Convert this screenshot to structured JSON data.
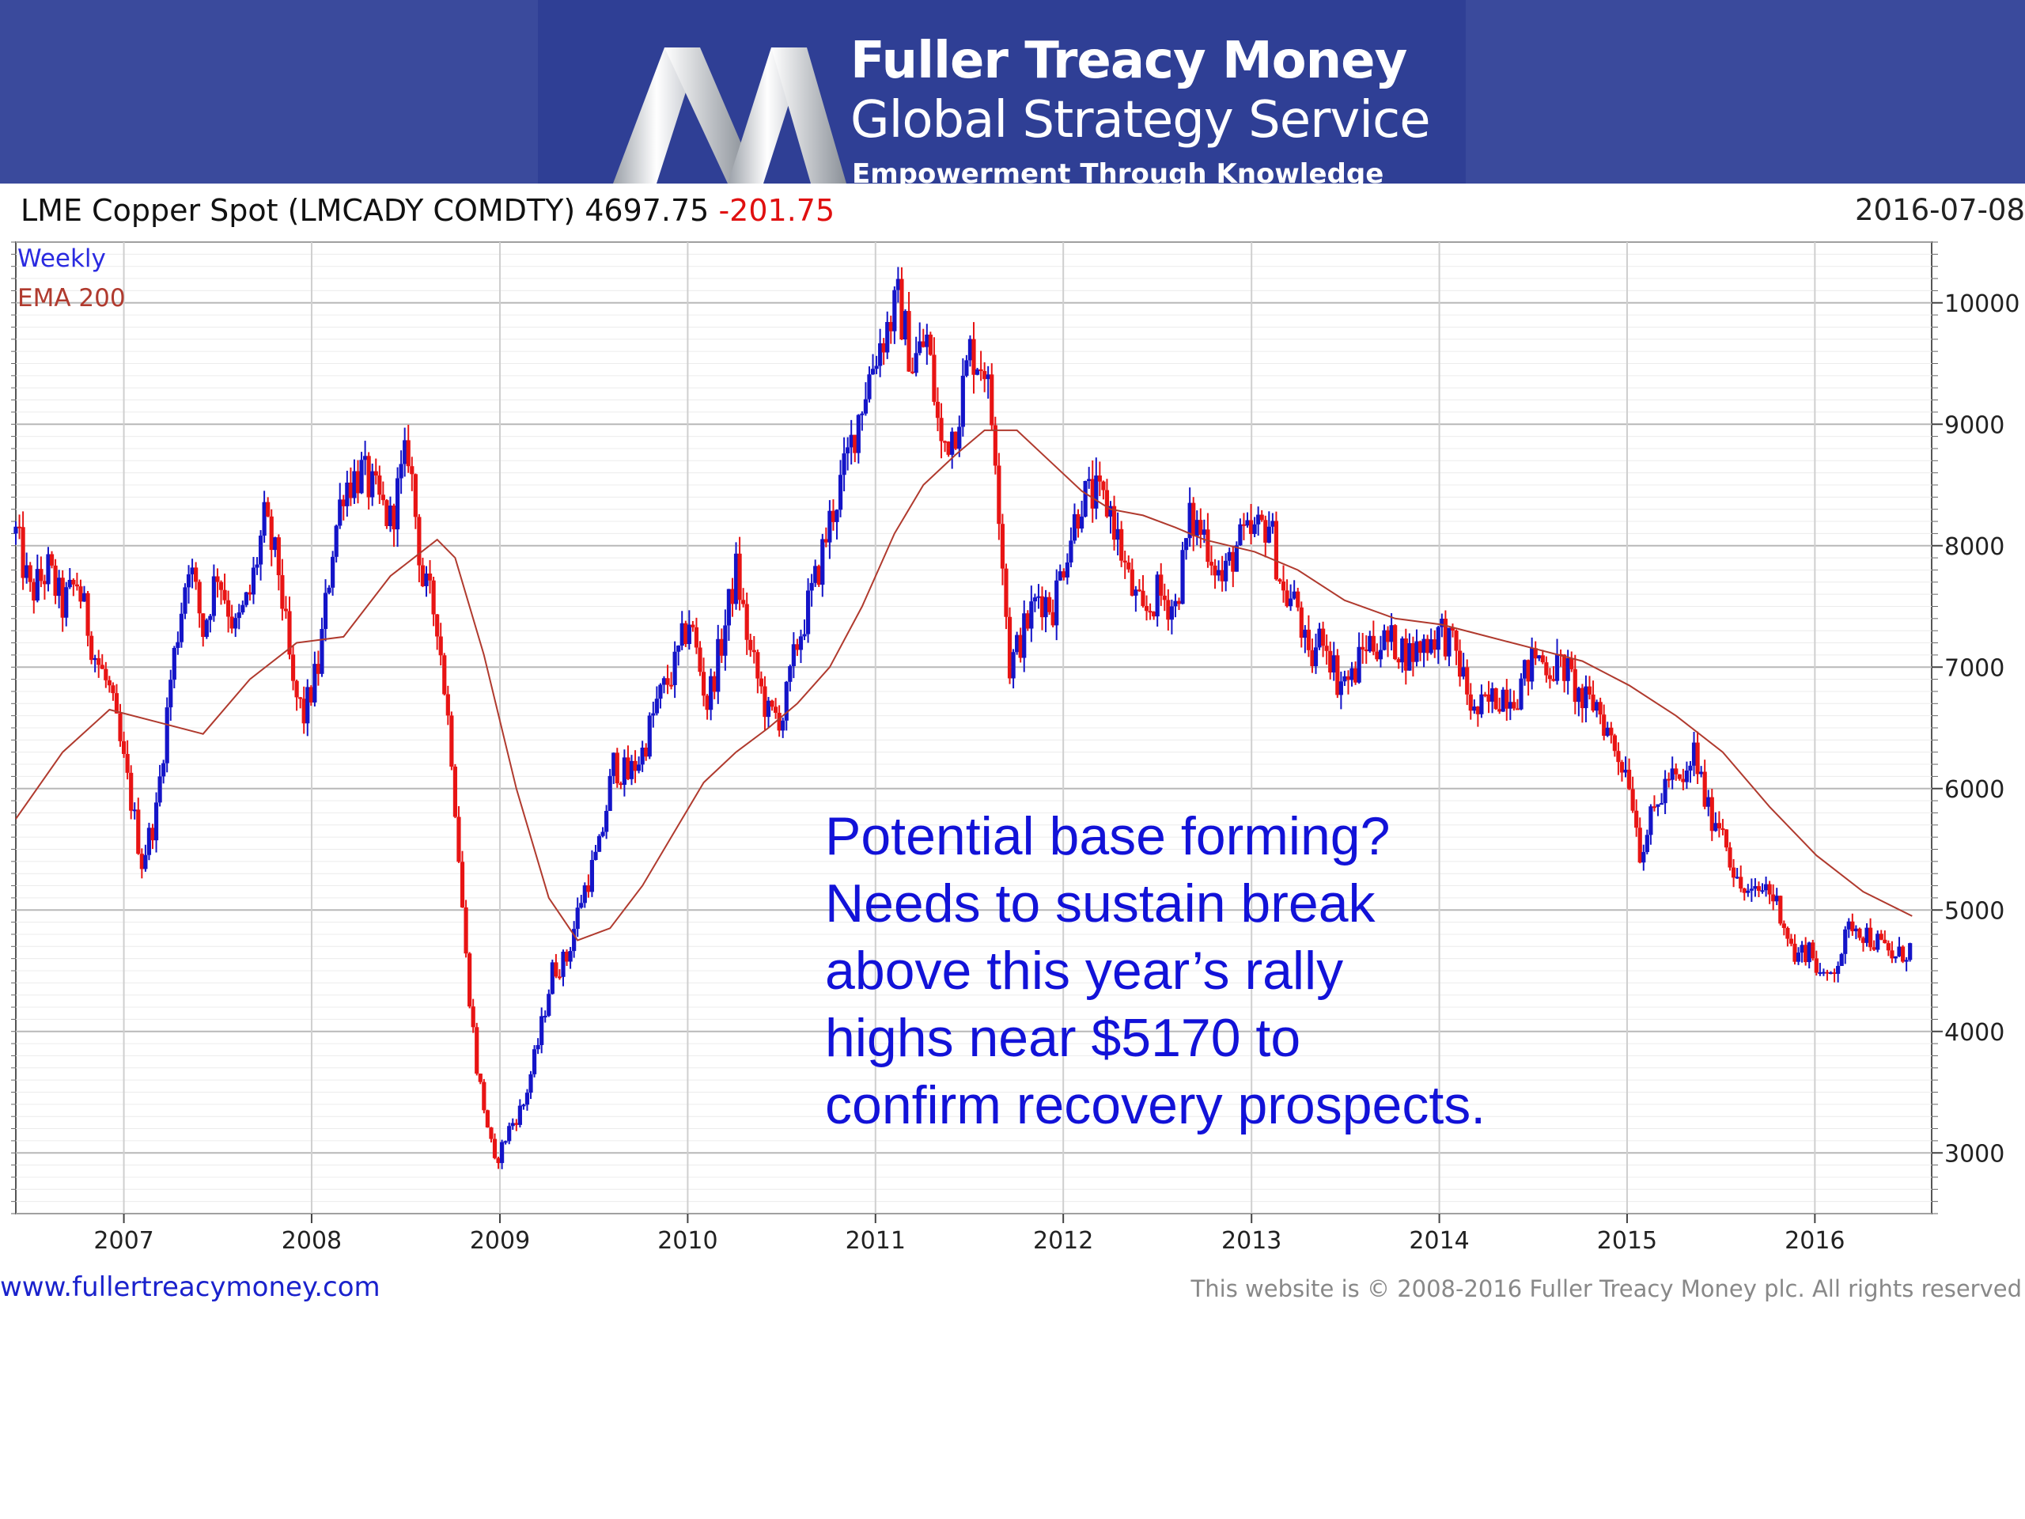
{
  "brand": {
    "line1": "Fuller Treacy Money",
    "line2": "Global Strategy Service",
    "tagline": "Empowerment Through Knowledge",
    "logo_icon": "ribbon-m-logo",
    "colors": {
      "banner": "#3a4a9c",
      "banner_center": "#2f3f95"
    }
  },
  "header": {
    "title": "LME Copper Spot (LMCADY COMDTY) 4697.75",
    "change": "-201.75",
    "date": "2016-07-08"
  },
  "chart_data": {
    "type": "candlestick",
    "legend": [
      "Weekly",
      "EMA 200"
    ],
    "legend_placement": "top-left",
    "annotation": [
      "Potential base forming?",
      "Needs to sustain break",
      "above this year’s rally",
      "highs near $5170 to",
      "confirm recovery prospects."
    ],
    "x_ticks": [
      "2007",
      "2008",
      "2009",
      "2010",
      "2011",
      "2012",
      "2013",
      "2014",
      "2015",
      "2016"
    ],
    "y_ticks": [
      3000,
      4000,
      5000,
      6000,
      7000,
      8000,
      9000,
      10000
    ],
    "ylim": [
      2500,
      10500
    ],
    "xlim": [
      "2006-06-05",
      "2016-08-15"
    ],
    "grid": true,
    "colors": {
      "up": "#1414c8",
      "down": "#e81414",
      "ema": "#b03a2e",
      "annotation": "#1212d8",
      "legend_weekly": "#2a2ae0",
      "legend_ema": "#b03a2e"
    },
    "price_path": [
      [
        "2006-06-05",
        8100
      ],
      [
        "2006-07-03",
        7600
      ],
      [
        "2006-08-07",
        7800
      ],
      [
        "2006-09-04",
        7500
      ],
      [
        "2006-10-02",
        7700
      ],
      [
        "2006-11-06",
        7100
      ],
      [
        "2006-12-04",
        6800
      ],
      [
        "2007-01-15",
        5900
      ],
      [
        "2007-02-05",
        5400
      ],
      [
        "2007-03-05",
        5800
      ],
      [
        "2007-04-02",
        6900
      ],
      [
        "2007-05-07",
        7900
      ],
      [
        "2007-06-04",
        7300
      ],
      [
        "2007-07-02",
        7800
      ],
      [
        "2007-08-06",
        7300
      ],
      [
        "2007-09-03",
        7600
      ],
      [
        "2007-10-01",
        8200
      ],
      [
        "2007-10-29",
        7800
      ],
      [
        "2007-11-26",
        6800
      ],
      [
        "2007-12-17",
        6600
      ],
      [
        "2008-01-14",
        7000
      ],
      [
        "2008-02-11",
        8000
      ],
      [
        "2008-03-03",
        8500
      ],
      [
        "2008-04-07",
        8600
      ],
      [
        "2008-05-05",
        8400
      ],
      [
        "2008-06-02",
        8200
      ],
      [
        "2008-07-07",
        8800
      ],
      [
        "2008-08-04",
        7700
      ],
      [
        "2008-09-01",
        7400
      ],
      [
        "2008-09-29",
        6300
      ],
      [
        "2008-10-27",
        4600
      ],
      [
        "2008-11-17",
        3700
      ],
      [
        "2008-12-22",
        2900
      ],
      [
        "2009-01-19",
        3200
      ],
      [
        "2009-02-16",
        3400
      ],
      [
        "2009-03-16",
        3900
      ],
      [
        "2009-04-13",
        4500
      ],
      [
        "2009-05-11",
        4600
      ],
      [
        "2009-06-08",
        5100
      ],
      [
        "2009-07-13",
        5500
      ],
      [
        "2009-08-10",
        6200
      ],
      [
        "2009-09-07",
        6100
      ],
      [
        "2009-10-05",
        6300
      ],
      [
        "2009-11-02",
        6700
      ],
      [
        "2009-12-07",
        7000
      ],
      [
        "2010-01-04",
        7400
      ],
      [
        "2010-02-08",
        6700
      ],
      [
        "2010-03-08",
        7200
      ],
      [
        "2010-04-05",
        7800
      ],
      [
        "2010-05-03",
        7100
      ],
      [
        "2010-06-07",
        6600
      ],
      [
        "2010-07-05",
        6600
      ],
      [
        "2010-08-02",
        7200
      ],
      [
        "2010-09-06",
        7700
      ],
      [
        "2010-10-04",
        8200
      ],
      [
        "2010-11-01",
        8600
      ],
      [
        "2010-12-06",
        9200
      ],
      [
        "2011-01-03",
        9600
      ],
      [
        "2011-02-14",
        10000
      ],
      [
        "2011-03-14",
        9500
      ],
      [
        "2011-04-11",
        9700
      ],
      [
        "2011-05-09",
        8800
      ],
      [
        "2011-06-06",
        9000
      ],
      [
        "2011-07-04",
        9600
      ],
      [
        "2011-08-01",
        9500
      ],
      [
        "2011-08-22",
        8800
      ],
      [
        "2011-09-19",
        7000
      ],
      [
        "2011-10-17",
        7300
      ],
      [
        "2011-11-14",
        7600
      ],
      [
        "2011-12-12",
        7500
      ],
      [
        "2012-01-09",
        8000
      ],
      [
        "2012-02-06",
        8400
      ],
      [
        "2012-03-05",
        8400
      ],
      [
        "2012-04-02",
        8300
      ],
      [
        "2012-05-07",
        7700
      ],
      [
        "2012-06-04",
        7400
      ],
      [
        "2012-07-02",
        7600
      ],
      [
        "2012-08-06",
        7500
      ],
      [
        "2012-09-03",
        8200
      ],
      [
        "2012-10-01",
        8100
      ],
      [
        "2012-11-05",
        7700
      ],
      [
        "2012-12-03",
        8000
      ],
      [
        "2013-01-07",
        8100
      ],
      [
        "2013-02-04",
        8200
      ],
      [
        "2013-03-04",
        7600
      ],
      [
        "2013-04-01",
        7500
      ],
      [
        "2013-04-22",
        7000
      ],
      [
        "2013-05-20",
        7300
      ],
      [
        "2013-06-17",
        6900
      ],
      [
        "2013-07-15",
        6900
      ],
      [
        "2013-08-12",
        7200
      ],
      [
        "2013-09-09",
        7200
      ],
      [
        "2013-10-07",
        7200
      ],
      [
        "2013-11-04",
        7100
      ],
      [
        "2013-12-02",
        7200
      ],
      [
        "2014-01-06",
        7300
      ],
      [
        "2014-02-03",
        7100
      ],
      [
        "2014-03-10",
        6600
      ],
      [
        "2014-04-07",
        6700
      ],
      [
        "2014-05-05",
        6800
      ],
      [
        "2014-06-02",
        6800
      ],
      [
        "2014-07-07",
        7100
      ],
      [
        "2014-08-04",
        7000
      ],
      [
        "2014-09-01",
        7000
      ],
      [
        "2014-10-06",
        6700
      ],
      [
        "2014-11-03",
        6700
      ],
      [
        "2014-12-01",
        6400
      ],
      [
        "2015-01-05",
        6100
      ],
      [
        "2015-01-26",
        5500
      ],
      [
        "2015-02-23",
        5800
      ],
      [
        "2015-03-23",
        6100
      ],
      [
        "2015-04-20",
        6000
      ],
      [
        "2015-05-11",
        6300
      ],
      [
        "2015-06-08",
        5800
      ],
      [
        "2015-07-06",
        5700
      ],
      [
        "2015-08-03",
        5200
      ],
      [
        "2015-08-31",
        5100
      ],
      [
        "2015-09-28",
        5200
      ],
      [
        "2015-10-26",
        5000
      ],
      [
        "2015-11-23",
        4600
      ],
      [
        "2015-12-21",
        4700
      ],
      [
        "2016-01-18",
        4400
      ],
      [
        "2016-02-15",
        4600
      ],
      [
        "2016-03-14",
        4900
      ],
      [
        "2016-04-11",
        4800
      ],
      [
        "2016-05-09",
        4700
      ],
      [
        "2016-06-06",
        4600
      ],
      [
        "2016-07-08",
        4698
      ]
    ],
    "ema_path": [
      [
        "2006-06-05",
        5750
      ],
      [
        "2006-09-04",
        6300
      ],
      [
        "2006-12-04",
        6650
      ],
      [
        "2007-03-05",
        6550
      ],
      [
        "2007-06-04",
        6450
      ],
      [
        "2007-09-03",
        6900
      ],
      [
        "2007-12-03",
        7200
      ],
      [
        "2008-03-03",
        7250
      ],
      [
        "2008-06-02",
        7750
      ],
      [
        "2008-09-01",
        8050
      ],
      [
        "2008-10-06",
        7900
      ],
      [
        "2008-12-01",
        7100
      ],
      [
        "2009-02-02",
        6000
      ],
      [
        "2009-04-06",
        5100
      ],
      [
        "2009-06-01",
        4750
      ],
      [
        "2009-08-03",
        4850
      ],
      [
        "2009-10-05",
        5200
      ],
      [
        "2009-12-07",
        5650
      ],
      [
        "2010-02-01",
        6050
      ],
      [
        "2010-04-05",
        6300
      ],
      [
        "2010-06-07",
        6500
      ],
      [
        "2010-08-02",
        6700
      ],
      [
        "2010-10-04",
        7000
      ],
      [
        "2010-12-06",
        7500
      ],
      [
        "2011-02-07",
        8100
      ],
      [
        "2011-04-04",
        8500
      ],
      [
        "2011-06-06",
        8750
      ],
      [
        "2011-08-01",
        8950
      ],
      [
        "2011-10-03",
        8950
      ],
      [
        "2011-12-05",
        8700
      ],
      [
        "2012-02-06",
        8450
      ],
      [
        "2012-04-02",
        8300
      ],
      [
        "2012-06-04",
        8250
      ],
      [
        "2012-08-06",
        8150
      ],
      [
        "2012-10-01",
        8050
      ],
      [
        "2013-01-07",
        7950
      ],
      [
        "2013-04-01",
        7800
      ],
      [
        "2013-07-01",
        7550
      ],
      [
        "2013-10-07",
        7400
      ],
      [
        "2014-01-06",
        7350
      ],
      [
        "2014-04-07",
        7250
      ],
      [
        "2014-07-07",
        7150
      ],
      [
        "2014-10-06",
        7050
      ],
      [
        "2015-01-05",
        6850
      ],
      [
        "2015-04-06",
        6600
      ],
      [
        "2015-07-06",
        6300
      ],
      [
        "2015-10-05",
        5850
      ],
      [
        "2016-01-04",
        5450
      ],
      [
        "2016-04-04",
        5150
      ],
      [
        "2016-07-08",
        4950
      ]
    ]
  },
  "footer": {
    "site": "www.fullertreacymoney.com",
    "copyright": "This website is © 2008-2016 Fuller Treacy Money plc. All rights reserved"
  }
}
